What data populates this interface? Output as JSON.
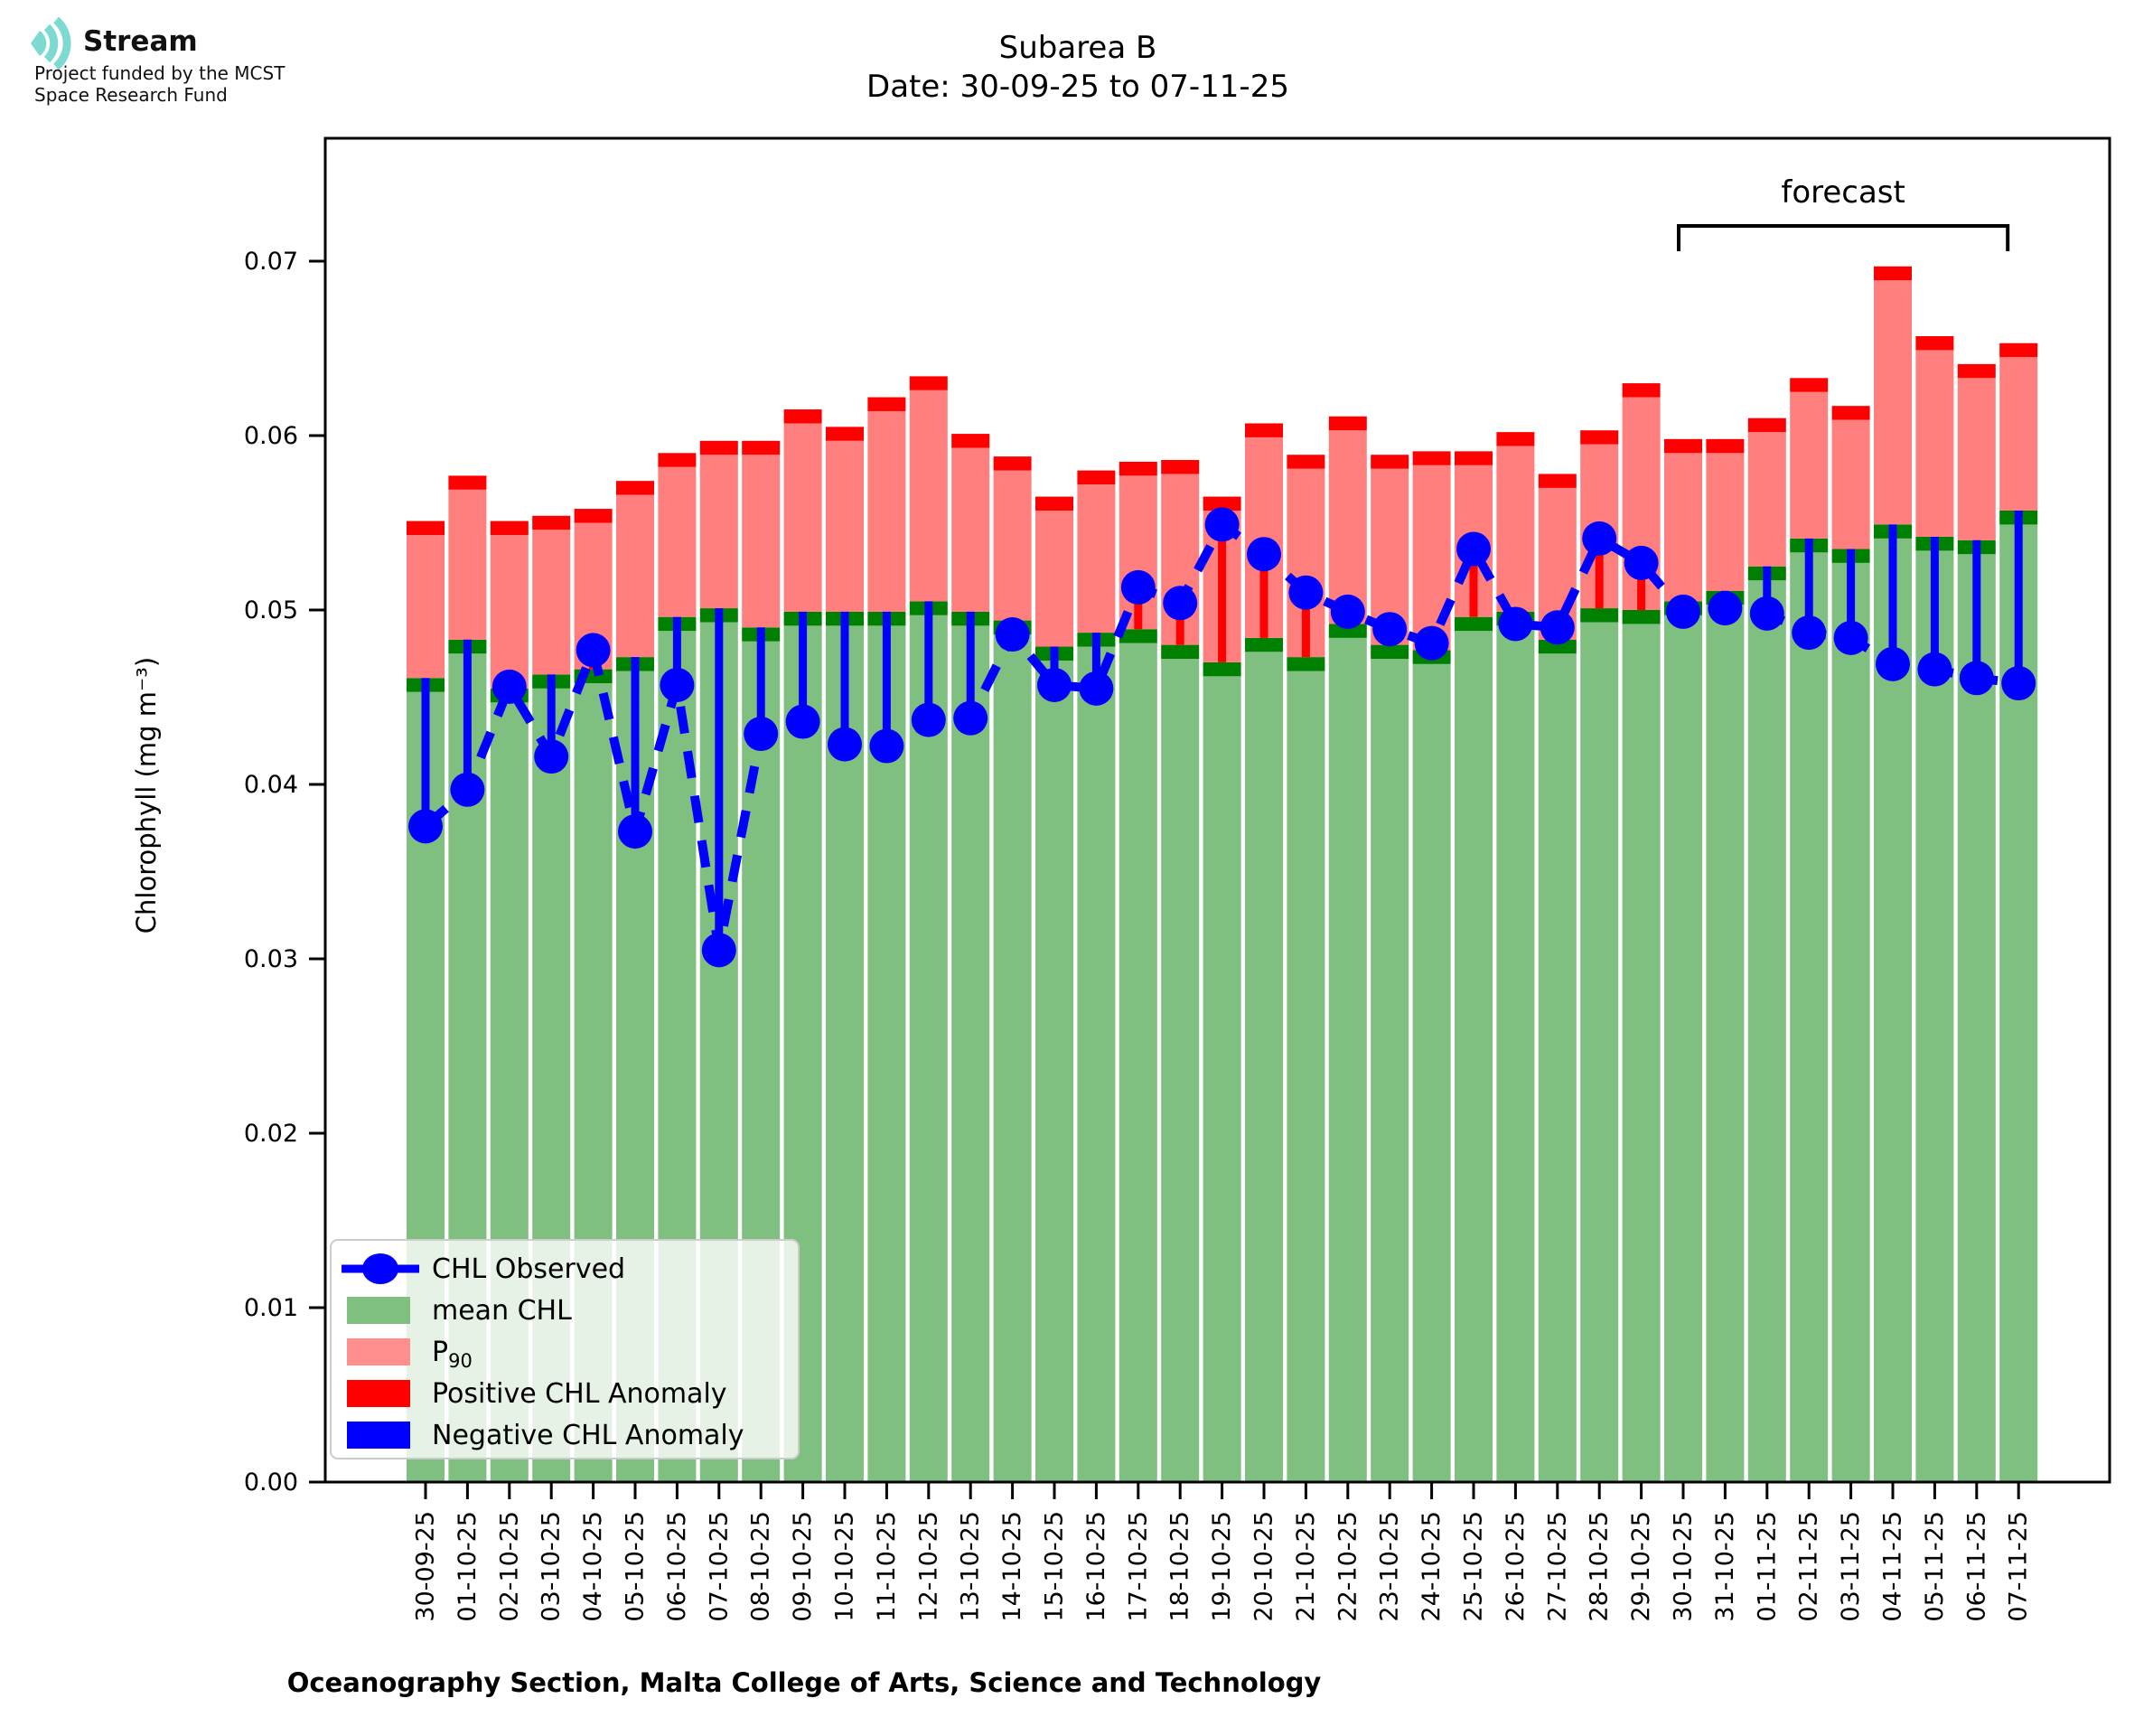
{
  "logo": {
    "brand": "Stream",
    "subtitle_line1": "Project funded by the MCST",
    "subtitle_line2": "Space Research Fund",
    "icon_color": "#7fd9d3"
  },
  "title": {
    "line1": "Subarea B",
    "line2": "Date: 30-09-25 to 07-11-25"
  },
  "forecast": {
    "label": "forecast",
    "start_date": "30-10-25",
    "end_date": "07-11-25"
  },
  "axes": {
    "ylabel": "Chlorophyll (mg m⁻³)",
    "xlabel": "Oceanography Section, Malta College of Arts, Science and Technology",
    "yticks": [
      "0.00",
      "0.01",
      "0.02",
      "0.03",
      "0.04",
      "0.05",
      "0.06",
      "0.07"
    ]
  },
  "legend": {
    "items": [
      {
        "label": "CHL Observed",
        "type": "line-marker",
        "color": "#0000ff"
      },
      {
        "label": "mean CHL",
        "type": "patch",
        "color": "#7fbf7f"
      },
      {
        "label": "P",
        "sub": "90",
        "type": "patch",
        "color": "#ff8f8f"
      },
      {
        "label": "Positive CHL Anomaly",
        "type": "patch",
        "color": "#ff0000"
      },
      {
        "label": "Negative CHL Anomaly",
        "type": "patch",
        "color": "#0000ff"
      }
    ]
  },
  "colors": {
    "mean_bar": "#7fbf7f",
    "mean_cap": "#008000",
    "p90_bar": "#ff7f7f",
    "p90_cap": "#ff0000",
    "observed": "#0000ff",
    "positive_anomaly": "#ff0000",
    "negative_anomaly": "#0000ff"
  },
  "chart_data": {
    "type": "bar",
    "subtype": "stacked climatology bars with observed line overlay and anomaly stems",
    "title": "Subarea B  Date: 30-09-25 to 07-11-25",
    "xlabel": "Oceanography Section, Malta College of Arts, Science and Technology",
    "ylabel": "Chlorophyll (mg m⁻³)",
    "ylim": [
      0,
      0.077
    ],
    "grid": false,
    "legend_position": "lower left",
    "x": [
      "30-09-25",
      "01-10-25",
      "02-10-25",
      "03-10-25",
      "04-10-25",
      "05-10-25",
      "06-10-25",
      "07-10-25",
      "08-10-25",
      "09-10-25",
      "10-10-25",
      "11-10-25",
      "12-10-25",
      "13-10-25",
      "14-10-25",
      "15-10-25",
      "16-10-25",
      "17-10-25",
      "18-10-25",
      "19-10-25",
      "20-10-25",
      "21-10-25",
      "22-10-25",
      "23-10-25",
      "24-10-25",
      "25-10-25",
      "26-10-25",
      "27-10-25",
      "28-10-25",
      "29-10-25",
      "30-10-25",
      "31-10-25",
      "01-11-25",
      "02-11-25",
      "03-11-25",
      "04-11-25",
      "05-11-25",
      "06-11-25",
      "07-11-25"
    ],
    "series": [
      {
        "name": "mean CHL",
        "type": "bar",
        "color": "#7fbf7f",
        "cap_color": "#008000",
        "values": [
          0.0461,
          0.0483,
          0.0455,
          0.0463,
          0.0466,
          0.0473,
          0.0496,
          0.0501,
          0.049,
          0.0499,
          0.0499,
          0.0499,
          0.0505,
          0.0499,
          0.0494,
          0.0479,
          0.0487,
          0.0489,
          0.048,
          0.047,
          0.0484,
          0.0473,
          0.0492,
          0.048,
          0.0477,
          0.0496,
          0.0499,
          0.0483,
          0.0501,
          0.05,
          0.0505,
          0.0511,
          0.0525,
          0.0541,
          0.0535,
          0.0549,
          0.0542,
          0.054,
          0.0557
        ]
      },
      {
        "name": "P90",
        "type": "bar",
        "color": "#ff7f7f",
        "cap_color": "#ff0000",
        "values": [
          0.0551,
          0.0577,
          0.0551,
          0.0554,
          0.0558,
          0.0574,
          0.059,
          0.0597,
          0.0597,
          0.0615,
          0.0605,
          0.0622,
          0.0634,
          0.0601,
          0.0588,
          0.0565,
          0.058,
          0.0585,
          0.0586,
          0.0565,
          0.0607,
          0.0589,
          0.0611,
          0.0589,
          0.0591,
          0.0591,
          0.0602,
          0.0578,
          0.0603,
          0.063,
          0.0598,
          0.0598,
          0.061,
          0.0633,
          0.0617,
          0.0697,
          0.0657,
          0.0641,
          0.0653
        ]
      },
      {
        "name": "CHL Observed",
        "type": "line",
        "color": "#0000ff",
        "marker": "circle",
        "linestyle": "dashed",
        "values": [
          0.0376,
          0.0397,
          0.0456,
          0.0416,
          0.0477,
          0.0373,
          0.0457,
          0.0305,
          0.0429,
          0.0436,
          0.0423,
          0.0422,
          0.0437,
          0.0438,
          0.0486,
          0.0457,
          0.0455,
          0.0513,
          0.0504,
          0.0549,
          0.0532,
          0.051,
          0.0499,
          0.0489,
          0.0481,
          0.0535,
          0.0492,
          0.049,
          0.0541,
          0.0527,
          0.0499,
          0.0501,
          0.0498,
          0.0487,
          0.0484,
          0.0469,
          0.0466,
          0.0461,
          0.0458
        ]
      }
    ],
    "anomaly_rule": "stem drawn from mean CHL top to observed value; red when observed > mean (positive), blue when observed < mean (negative)",
    "forecast_span": {
      "label": "forecast",
      "from_index": 30,
      "to_index": 38
    }
  }
}
